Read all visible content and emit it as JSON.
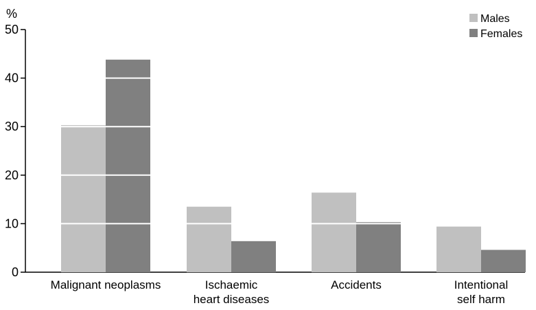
{
  "chart_data": {
    "type": "bar",
    "title": "",
    "xlabel": "",
    "ylabel": "%",
    "ylim": [
      0,
      50
    ],
    "yticks": [
      "0",
      "10",
      "20",
      "30",
      "40",
      "50"
    ],
    "categories": [
      [
        "Malignant neoplasms"
      ],
      [
        "Ischaemic",
        "heart diseases"
      ],
      [
        "Accidents"
      ],
      [
        "Intentional",
        "self harm"
      ]
    ],
    "series": [
      {
        "name": "Males",
        "color": "#c0c0c0",
        "values": [
          30.3,
          13.5,
          16.4,
          9.4
        ]
      },
      {
        "name": "Females",
        "color": "#808080",
        "values": [
          43.8,
          6.4,
          10.3,
          4.6
        ]
      }
    ],
    "grid": "white horizontal lines drawn over bars only",
    "legend_position": "top-right"
  }
}
